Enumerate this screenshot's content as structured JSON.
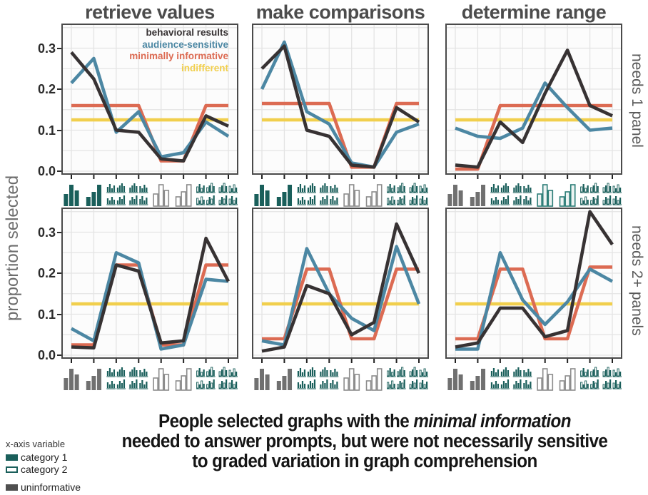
{
  "figure": {
    "caption": {
      "line1_prefix": "People selected graphs with the ",
      "line1_highlight": "minimal information",
      "line2": "needed to answer prompts, but were not necessarily sensitive",
      "line3": "to graded variation in graph comprehension",
      "highlight_color": "#d4512f"
    },
    "bottom_legend": {
      "header": "x-axis variable",
      "items": [
        {
          "label": "category 1",
          "swatch": "teal-filled"
        },
        {
          "label": "category 2",
          "swatch": "teal-outline"
        },
        {
          "label": "uninformative",
          "swatch": "gray-filled"
        }
      ]
    }
  },
  "chart_data": {
    "type": "line",
    "layout": "2x3 small multiples",
    "column_titles": [
      "retrieve values",
      "make comparisons",
      "determine range"
    ],
    "row_labels": [
      "needs 1 panel",
      "needs 2+ panels"
    ],
    "ylabel": "proportion selected",
    "ytick_labels": [
      "0.3",
      "0.2",
      "0.1",
      "0.0"
    ],
    "ytick_values": [
      0.3,
      0.2,
      0.1,
      0.0
    ],
    "ylim": [
      0,
      0.36
    ],
    "grid": "on, 0.05 steps and at each x category",
    "legend_position": "top-right inside first panel",
    "series_names": [
      "behavioral results",
      "audience-sensitive",
      "minimally informative",
      "indifferent"
    ],
    "series_keys": [
      "behavioral",
      "audience",
      "minimal",
      "indifferent"
    ],
    "colors": {
      "behavioral": "#373233",
      "audience": "#4c87a3",
      "minimal": "#dc6b53",
      "indifferent": "#f1cf4d",
      "icon_teal": "#1a5f5b",
      "icon_gray": "#707070",
      "icon_outline_gray": "#8c8c8c",
      "panel_border": "#4a4a4a",
      "gridline": "#e4e4e4",
      "panel_bg": "#fcfcfc"
    },
    "x_axis_note": "8 graph-design icons per panel (bar-chart thumbnails)",
    "panels": [
      {
        "column": "retrieve values",
        "row": "needs 1 panel",
        "col_index": 0,
        "row_index": 0,
        "icons": [
          "bars-filled-teal-1",
          "bars-filled-teal-2",
          "facet-grid-teal-1",
          "facet-grid-teal-2",
          "bars-outline-gray-1",
          "bars-outline-gray-2",
          "facet-grid-mixed-1",
          "facet-grid-mixed-2"
        ],
        "series": {
          "behavioral": [
            0.29,
            0.225,
            0.1,
            0.095,
            0.03,
            0.025,
            0.135,
            0.11
          ],
          "audience": [
            0.215,
            0.275,
            0.095,
            0.145,
            0.035,
            0.045,
            0.12,
            0.085
          ],
          "minimal": [
            0.16,
            0.16,
            0.16,
            0.16,
            0.025,
            0.025,
            0.16,
            0.16
          ],
          "indifferent": [
            0.125,
            0.125,
            0.125,
            0.125,
            0.125,
            0.125,
            0.125,
            0.125
          ]
        }
      },
      {
        "column": "make comparisons",
        "row": "needs 1 panel",
        "col_index": 1,
        "row_index": 0,
        "icons": [
          "bars-filled-teal-1",
          "bars-filled-teal-2",
          "facet-grid-teal-1",
          "facet-grid-teal-2",
          "bars-outline-gray-1",
          "bars-outline-gray-2",
          "facet-grid-mixed-1",
          "facet-grid-mixed-2"
        ],
        "series": {
          "behavioral": [
            0.25,
            0.305,
            0.1,
            0.085,
            0.015,
            0.01,
            0.155,
            0.12
          ],
          "audience": [
            0.2,
            0.315,
            0.145,
            0.115,
            0.02,
            0.01,
            0.095,
            0.115
          ],
          "minimal": [
            0.165,
            0.165,
            0.165,
            0.165,
            0.01,
            0.01,
            0.165,
            0.165
          ],
          "indifferent": [
            0.125,
            0.125,
            0.125,
            0.125,
            0.125,
            0.125,
            0.125,
            0.125
          ]
        }
      },
      {
        "column": "determine range",
        "row": "needs 1 panel",
        "col_index": 2,
        "row_index": 0,
        "icons": [
          "bars-filled-gray-1",
          "bars-filled-gray-2",
          "facet-grid-teal-1",
          "facet-grid-teal-2",
          "bars-outline-teal-1",
          "bars-outline-teal-2",
          "facet-grid-mixed-1",
          "facet-grid-mixed-2"
        ],
        "series": {
          "behavioral": [
            0.015,
            0.01,
            0.12,
            0.07,
            0.19,
            0.295,
            0.16,
            0.135
          ],
          "audience": [
            0.105,
            0.085,
            0.08,
            0.105,
            0.215,
            0.155,
            0.1,
            0.105
          ],
          "minimal": [
            0.005,
            0.005,
            0.16,
            0.16,
            0.16,
            0.16,
            0.16,
            0.16
          ],
          "indifferent": [
            0.125,
            0.125,
            0.125,
            0.125,
            0.125,
            0.125,
            0.125,
            0.125
          ]
        }
      },
      {
        "column": "retrieve values",
        "row": "needs 2+ panels",
        "col_index": 0,
        "row_index": 1,
        "icons": [
          "bars-filled-gray-1",
          "bars-filled-gray-2",
          "facet-grid-teal-1",
          "facet-grid-teal-2",
          "bars-outline-gray-1",
          "bars-outline-gray-2",
          "facet-grid-mixed-1",
          "facet-grid-mixed-2"
        ],
        "series": {
          "behavioral": [
            0.02,
            0.018,
            0.22,
            0.205,
            0.03,
            0.035,
            0.285,
            0.18
          ],
          "audience": [
            0.065,
            0.035,
            0.25,
            0.225,
            0.015,
            0.025,
            0.185,
            0.18
          ],
          "minimal": [
            0.025,
            0.025,
            0.22,
            0.22,
            0.025,
            0.025,
            0.22,
            0.22
          ],
          "indifferent": [
            0.125,
            0.125,
            0.125,
            0.125,
            0.125,
            0.125,
            0.125,
            0.125
          ]
        }
      },
      {
        "column": "make comparisons",
        "row": "needs 2+ panels",
        "col_index": 1,
        "row_index": 1,
        "icons": [
          "bars-filled-gray-1",
          "bars-filled-gray-2",
          "facet-grid-teal-1",
          "facet-grid-teal-2",
          "bars-outline-gray-1",
          "bars-outline-gray-2",
          "facet-grid-mixed-1",
          "facet-grid-mixed-2"
        ],
        "series": {
          "behavioral": [
            0.01,
            0.02,
            0.17,
            0.15,
            0.05,
            0.08,
            0.32,
            0.2
          ],
          "audience": [
            0.035,
            0.025,
            0.26,
            0.15,
            0.09,
            0.06,
            0.265,
            0.125
          ],
          "minimal": [
            0.04,
            0.04,
            0.21,
            0.21,
            0.04,
            0.04,
            0.21,
            0.21
          ],
          "indifferent": [
            0.125,
            0.125,
            0.125,
            0.125,
            0.125,
            0.125,
            0.125,
            0.125
          ]
        }
      },
      {
        "column": "determine range",
        "row": "needs 2+ panels",
        "col_index": 2,
        "row_index": 1,
        "icons": [
          "bars-filled-gray-1",
          "bars-filled-gray-2",
          "facet-grid-teal-1",
          "facet-grid-teal-2",
          "bars-outline-gray-1",
          "bars-outline-gray-2",
          "facet-grid-mixed-1",
          "facet-grid-mixed-2"
        ],
        "series": {
          "behavioral": [
            0.02,
            0.03,
            0.115,
            0.115,
            0.045,
            0.06,
            0.35,
            0.27
          ],
          "audience": [
            0.015,
            0.015,
            0.25,
            0.135,
            0.075,
            0.13,
            0.21,
            0.18
          ],
          "minimal": [
            0.04,
            0.04,
            0.21,
            0.21,
            0.04,
            0.04,
            0.215,
            0.215
          ],
          "indifferent": [
            0.125,
            0.125,
            0.125,
            0.125,
            0.125,
            0.125,
            0.125,
            0.125
          ]
        }
      }
    ]
  }
}
